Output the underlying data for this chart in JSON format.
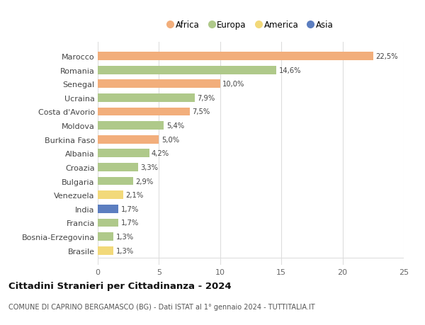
{
  "countries": [
    "Marocco",
    "Romania",
    "Senegal",
    "Ucraina",
    "Costa d'Avorio",
    "Moldova",
    "Burkina Faso",
    "Albania",
    "Croazia",
    "Bulgaria",
    "Venezuela",
    "India",
    "Francia",
    "Bosnia-Erzegovina",
    "Brasile"
  ],
  "values": [
    22.5,
    14.6,
    10.0,
    7.9,
    7.5,
    5.4,
    5.0,
    4.2,
    3.3,
    2.9,
    2.1,
    1.7,
    1.7,
    1.3,
    1.3
  ],
  "labels": [
    "22,5%",
    "14,6%",
    "10,0%",
    "7,9%",
    "7,5%",
    "5,4%",
    "5,0%",
    "4,2%",
    "3,3%",
    "2,9%",
    "2,1%",
    "1,7%",
    "1,7%",
    "1,3%",
    "1,3%"
  ],
  "continents": [
    "Africa",
    "Europa",
    "Africa",
    "Europa",
    "Africa",
    "Europa",
    "Africa",
    "Europa",
    "Europa",
    "Europa",
    "America",
    "Asia",
    "Europa",
    "Europa",
    "America"
  ],
  "continent_colors": {
    "Africa": "#F2AE7B",
    "Europa": "#AFC98A",
    "America": "#F2D97A",
    "Asia": "#5C7EC0"
  },
  "legend_order": [
    "Africa",
    "Europa",
    "America",
    "Asia"
  ],
  "title": "Cittadini Stranieri per Cittadinanza - 2024",
  "subtitle": "COMUNE DI CAPRINO BERGAMASCO (BG) - Dati ISTAT al 1° gennaio 2024 - TUTTITALIA.IT",
  "xlim": [
    0,
    25
  ],
  "xticks": [
    0,
    5,
    10,
    15,
    20,
    25
  ],
  "background_color": "#ffffff",
  "bar_height": 0.6,
  "grid_color": "#dddddd"
}
